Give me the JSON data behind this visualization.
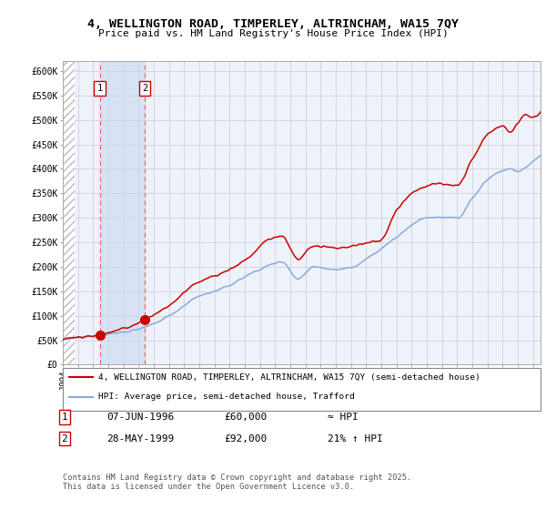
{
  "title": "4, WELLINGTON ROAD, TIMPERLEY, ALTRINCHAM, WA15 7QY",
  "subtitle": "Price paid vs. HM Land Registry's House Price Index (HPI)",
  "xlim": [
    1994.0,
    2025.5
  ],
  "ylim": [
    0,
    620000
  ],
  "yticks": [
    0,
    50000,
    100000,
    150000,
    200000,
    250000,
    300000,
    350000,
    400000,
    450000,
    500000,
    550000,
    600000
  ],
  "ytick_labels": [
    "£0",
    "£50K",
    "£100K",
    "£150K",
    "£200K",
    "£250K",
    "£300K",
    "£350K",
    "£400K",
    "£450K",
    "£500K",
    "£550K",
    "£600K"
  ],
  "transactions": [
    {
      "date_num": 1996.44,
      "price": 60000,
      "label": "1"
    },
    {
      "date_num": 1999.41,
      "price": 92000,
      "label": "2"
    }
  ],
  "legend_entries": [
    {
      "label": "4, WELLINGTON ROAD, TIMPERLEY, ALTRINCHAM, WA15 7QY (semi-detached house)",
      "color": "#cc0000",
      "lw": 1.5
    },
    {
      "label": "HPI: Average price, semi-detached house, Trafford",
      "color": "#88aadd",
      "lw": 1.5
    }
  ],
  "footnote": "Contains HM Land Registry data © Crown copyright and database right 2025.\nThis data is licensed under the Open Government Licence v3.0.",
  "table_rows": [
    {
      "num": "1",
      "date": "07-JUN-1996",
      "price": "£60,000",
      "change": "≈ HPI"
    },
    {
      "num": "2",
      "date": "28-MAY-1999",
      "price": "£92,000",
      "change": "21% ↑ HPI"
    }
  ],
  "hatch_end_year": 1994.75,
  "bg_color": "#ffffff",
  "plot_bg": "#eef2fa",
  "grid_color": "#cccccc",
  "red_line_color": "#cc0000",
  "blue_line_color": "#88aadd",
  "dashed_line_color": "#ff6666"
}
